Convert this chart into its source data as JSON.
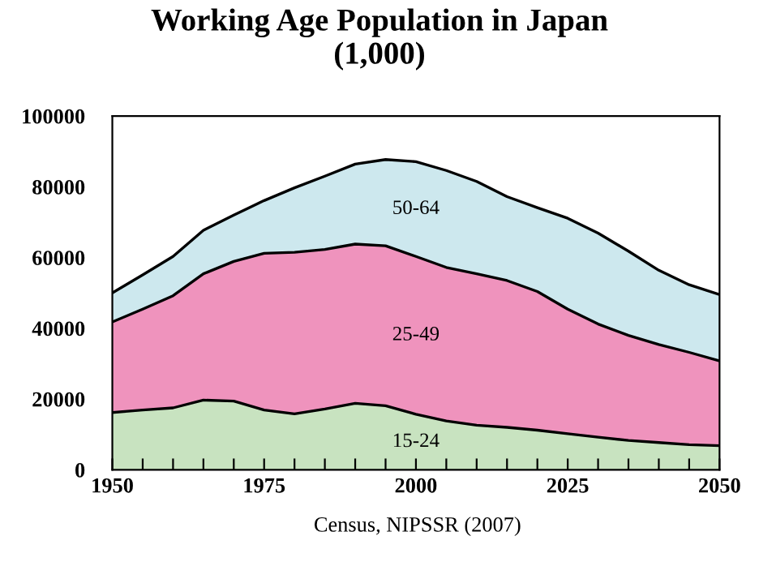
{
  "chart_data": {
    "type": "area",
    "stacked": true,
    "title": "Working Age Population in Japan\n(1,000)",
    "annotations": [
      "Census, NIPSSR (2007)"
    ],
    "x": [
      1950,
      1955,
      1960,
      1965,
      1970,
      1975,
      1980,
      1985,
      1990,
      1995,
      2000,
      2005,
      2010,
      2015,
      2020,
      2025,
      2030,
      2035,
      2040,
      2045,
      2050
    ],
    "series": [
      {
        "name": "15-24",
        "color": "#c8e3c0",
        "values": [
          16200,
          16900,
          17500,
          19700,
          19400,
          16900,
          15800,
          17200,
          18800,
          18100,
          15700,
          13800,
          12600,
          12000,
          11200,
          10200,
          9200,
          8300,
          7700,
          7100,
          6800
        ]
      },
      {
        "name": "25-49",
        "color": "#ef93bd",
        "values": [
          25600,
          28500,
          31700,
          35700,
          39500,
          44300,
          45700,
          45100,
          45000,
          45200,
          44600,
          43400,
          42800,
          41500,
          39200,
          35200,
          32000,
          29700,
          27700,
          26100,
          24000
        ]
      },
      {
        "name": "50-64",
        "color": "#cde8ee",
        "values": [
          8200,
          9700,
          11100,
          12300,
          13100,
          14900,
          18200,
          20700,
          22600,
          24400,
          26800,
          27400,
          26100,
          23700,
          23700,
          25700,
          25700,
          23800,
          21000,
          19100,
          18700
        ]
      }
    ],
    "xlim": [
      1950,
      2050
    ],
    "ylim": [
      0,
      100000
    ],
    "xticks": [
      1950,
      {
        "value": 1955,
        "label": null
      },
      {
        "value": 1960,
        "label": null
      },
      {
        "value": 1965,
        "label": null
      },
      {
        "value": 1970,
        "label": null
      },
      1975,
      {
        "value": 1980,
        "label": null
      },
      {
        "value": 1985,
        "label": null
      },
      {
        "value": 1990,
        "label": null
      },
      {
        "value": 1995,
        "label": null
      },
      2000,
      {
        "value": 2005,
        "label": null
      },
      {
        "value": 2010,
        "label": null
      },
      {
        "value": 2015,
        "label": null
      },
      {
        "value": 2020,
        "label": null
      },
      2025,
      {
        "value": 2030,
        "label": null
      },
      {
        "value": 2035,
        "label": null
      },
      {
        "value": 2040,
        "label": null
      },
      {
        "value": 2045,
        "label": null
      },
      2050
    ],
    "yticks": [
      0,
      20000,
      40000,
      60000,
      80000,
      100000
    ],
    "grid": false,
    "legend": false
  }
}
